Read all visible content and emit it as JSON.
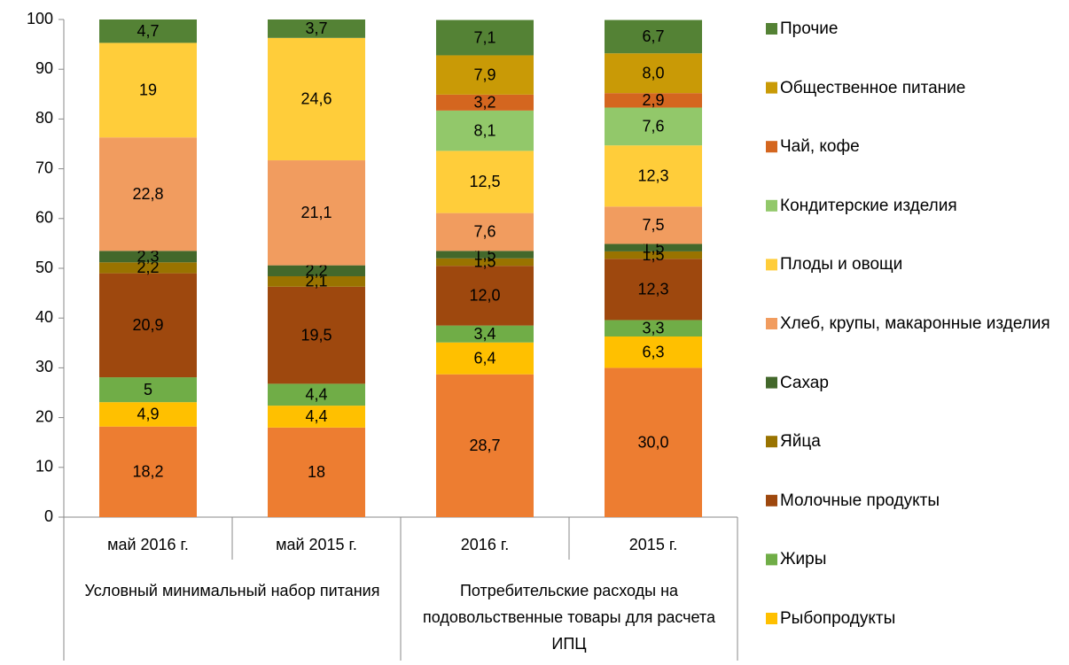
{
  "chart_data": {
    "type": "stacked_bar",
    "categories": [
      "май 2016 г.",
      "май 2015 г.",
      "2016 г.",
      "2015 г."
    ],
    "category_groups": [
      "Условный минимальный набор питания",
      "Потребительские расходы на подовольственные товары для расчета ИПЦ"
    ],
    "ylim": [
      0,
      100
    ],
    "yticks": [
      0,
      10,
      20,
      30,
      40,
      50,
      60,
      70,
      80,
      90,
      100
    ],
    "series": [
      {
        "color": "#ED7D31",
        "values": [
          18.2,
          18,
          28.7,
          30.0
        ],
        "value_labels": [
          "18,2",
          "18",
          "28,7",
          "30,0"
        ]
      },
      {
        "name": "Рыбопродукты",
        "color": "#FFC000",
        "values": [
          4.9,
          4.4,
          6.4,
          6.3
        ],
        "value_labels": [
          "4,9",
          "4,4",
          "6,4",
          "6,3"
        ]
      },
      {
        "name": "Жиры",
        "color": "#70AD47",
        "values": [
          5,
          4.4,
          3.4,
          3.3
        ],
        "value_labels": [
          "5",
          "4,4",
          "3,4",
          "3,3"
        ]
      },
      {
        "name": "Молочные продукты",
        "color": "#9E480E",
        "values": [
          20.9,
          19.5,
          12.0,
          12.3
        ],
        "value_labels": [
          "20,9",
          "19,5",
          "12,0",
          "12,3"
        ]
      },
      {
        "name": "Яйца",
        "color": "#997300",
        "values": [
          2.2,
          2.1,
          1.5,
          1.5
        ],
        "value_labels": [
          "2,2",
          "2,1",
          "1,5",
          "1,5"
        ]
      },
      {
        "name": "Сахар",
        "color": "#43682B",
        "values": [
          2.3,
          2.2,
          1.5,
          1.5
        ],
        "value_labels": [
          "2,3",
          "2,2",
          "1,5",
          "1,5"
        ]
      },
      {
        "name": "Хлеб, крупы, макаронные изделия",
        "color": "#F19C5F",
        "values": [
          22.8,
          21.1,
          7.6,
          7.5
        ],
        "value_labels": [
          "22,8",
          "21,1",
          "7,6",
          "7,5"
        ]
      },
      {
        "name": "Плоды и овощи",
        "color": "#FFCD3A",
        "values": [
          19,
          24.6,
          12.5,
          12.3
        ],
        "value_labels": [
          "19",
          "24,6",
          "12,5",
          "12,3"
        ]
      },
      {
        "name": "Кондитерские изделия",
        "color": "#92C86A",
        "values": [
          null,
          null,
          8.1,
          7.6
        ],
        "value_labels": [
          null,
          null,
          "8,1",
          "7,6"
        ]
      },
      {
        "name": "Чай, кофе",
        "color": "#D4661F",
        "values": [
          null,
          null,
          3.2,
          2.9
        ],
        "value_labels": [
          null,
          null,
          "3,2",
          "2,9"
        ]
      },
      {
        "name": "Общественное питание",
        "color": "#C99A06",
        "values": [
          null,
          null,
          7.9,
          8.0
        ],
        "value_labels": [
          null,
          null,
          "7,9",
          "8,0"
        ]
      },
      {
        "name": "Прочие",
        "color": "#548235",
        "values": [
          4.7,
          3.7,
          7.1,
          6.7
        ],
        "value_labels": [
          "4,7",
          "3,7",
          "7,1",
          "6,7"
        ]
      }
    ]
  }
}
